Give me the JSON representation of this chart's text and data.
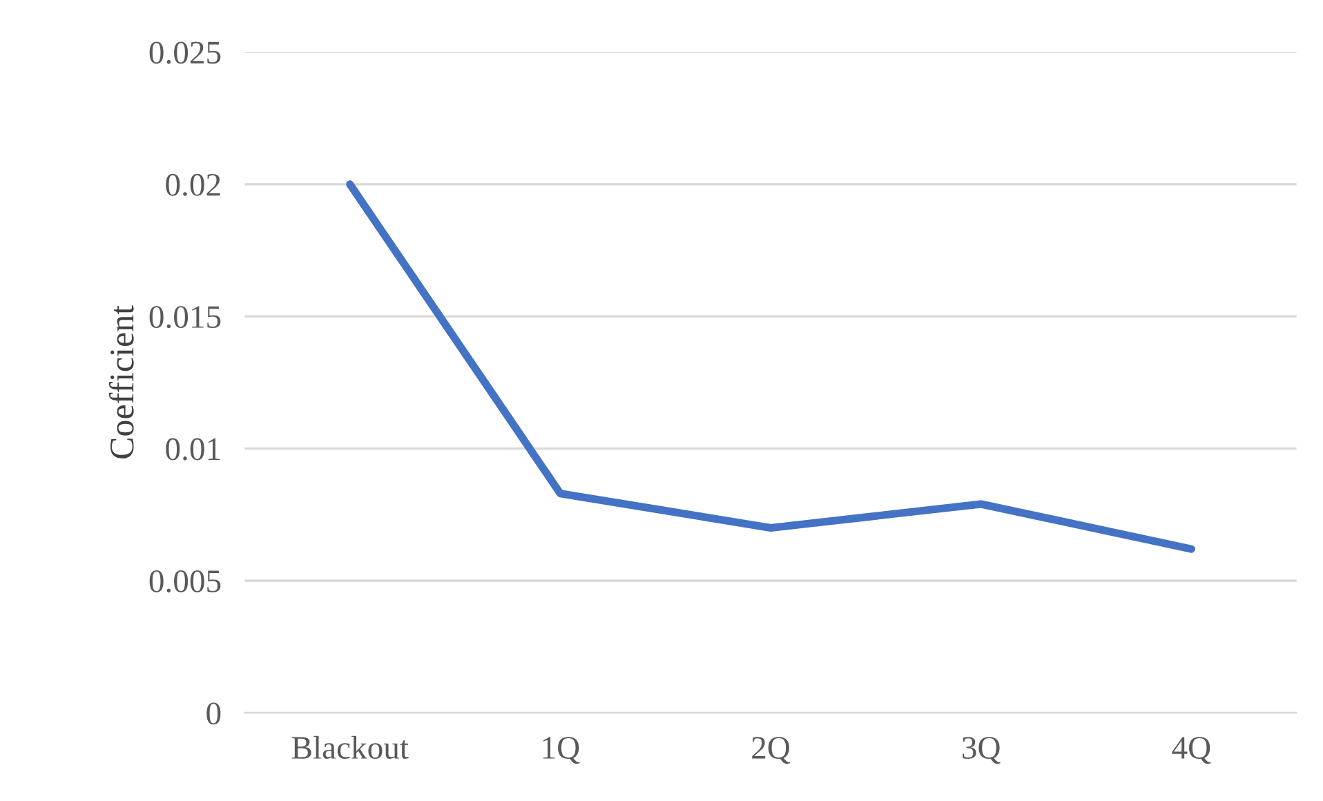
{
  "chart_data": {
    "type": "line",
    "ylabel": "Coefficient",
    "categories": [
      "Blackout",
      "1Q",
      "2Q",
      "3Q",
      "4Q"
    ],
    "series": [
      {
        "color": "#4472c4",
        "values": [
          0.02,
          0.0083,
          0.007,
          0.0079,
          0.0062
        ]
      }
    ],
    "ylim": [
      0,
      0.025
    ],
    "yticks": [
      0,
      0.005,
      0.01,
      0.015,
      0.02,
      0.025
    ],
    "grid": "y",
    "legend": false,
    "marker": "none"
  }
}
